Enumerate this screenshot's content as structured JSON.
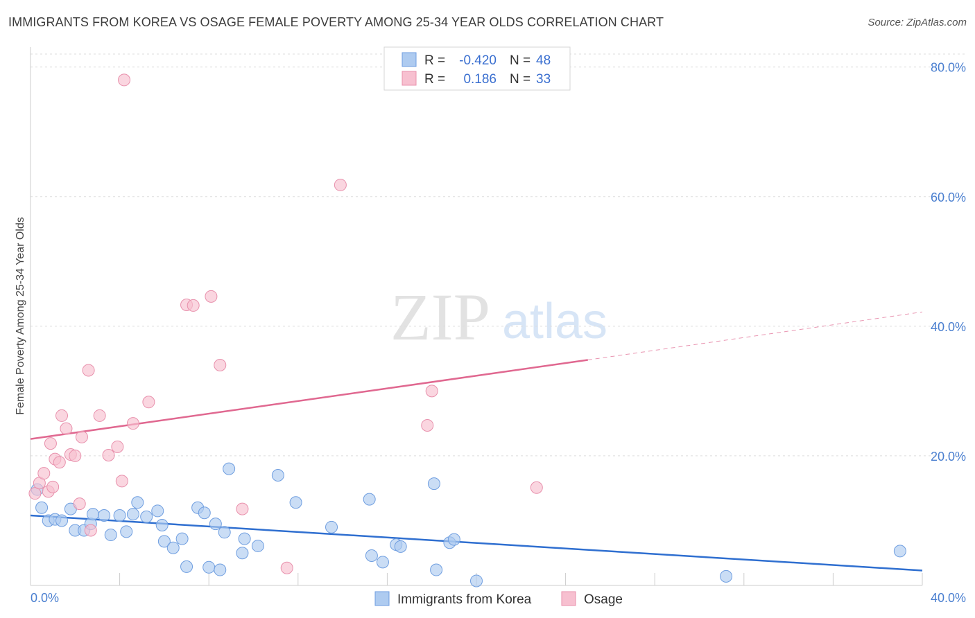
{
  "title": "IMMIGRANTS FROM KOREA VS OSAGE FEMALE POVERTY AMONG 25-34 YEAR OLDS CORRELATION CHART",
  "source": "Source: ZipAtlas.com",
  "watermark": {
    "zip": "ZIP",
    "atlas": "atlas"
  },
  "legend_top": [
    {
      "r_label": "R =",
      "r_value": "-0.420",
      "n_label": "N =",
      "n_value": "48"
    },
    {
      "r_label": "R =",
      "r_value": "0.186",
      "n_label": "N =",
      "n_value": "33"
    }
  ],
  "legend_bottom": [
    {
      "label": "Immigrants from Korea"
    },
    {
      "label": "Osage"
    }
  ],
  "colors": {
    "blue_fill": "#aecbf0",
    "blue_stroke": "#6f9ee0",
    "blue_line": "#2f6fd0",
    "pink_fill": "#f7c0d0",
    "pink_stroke": "#e890ac",
    "pink_line": "#e06890",
    "tick_color": "#4a7fd0",
    "grid": "#dddddd"
  },
  "chart_data": {
    "type": "scatter",
    "title": "IMMIGRANTS FROM KOREA VS OSAGE FEMALE POVERTY AMONG 25-34 YEAR OLDS CORRELATION CHART",
    "xlabel": "",
    "ylabel": "Female Poverty Among 25-34 Year Olds",
    "xlim": [
      0,
      40
    ],
    "ylim": [
      0,
      82
    ],
    "x_tick_labels": [
      "0.0%",
      "40.0%"
    ],
    "y_ticks": [
      20,
      40,
      60,
      80
    ],
    "y_tick_labels": [
      "20.0%",
      "40.0%",
      "60.0%",
      "80.0%"
    ],
    "grid": true,
    "legend_position": "top-center",
    "series": [
      {
        "name": "Immigrants from Korea",
        "color": "#aecbf0",
        "points": [
          [
            0.3,
            14.8
          ],
          [
            0.5,
            12.0
          ],
          [
            0.8,
            10.0
          ],
          [
            1.1,
            10.2
          ],
          [
            1.4,
            10.0
          ],
          [
            1.8,
            11.8
          ],
          [
            2.0,
            8.5
          ],
          [
            2.4,
            8.5
          ],
          [
            2.7,
            9.5
          ],
          [
            2.8,
            11.0
          ],
          [
            3.3,
            10.8
          ],
          [
            3.6,
            7.8
          ],
          [
            4.0,
            10.8
          ],
          [
            4.3,
            8.3
          ],
          [
            4.6,
            11.0
          ],
          [
            4.8,
            12.8
          ],
          [
            5.2,
            10.6
          ],
          [
            5.7,
            11.5
          ],
          [
            5.9,
            9.3
          ],
          [
            6.0,
            6.8
          ],
          [
            6.4,
            5.8
          ],
          [
            6.8,
            7.2
          ],
          [
            7.0,
            2.9
          ],
          [
            7.5,
            12.0
          ],
          [
            7.8,
            11.2
          ],
          [
            8.0,
            2.8
          ],
          [
            8.3,
            9.5
          ],
          [
            8.5,
            2.4
          ],
          [
            8.7,
            8.2
          ],
          [
            8.9,
            18.0
          ],
          [
            9.5,
            5.0
          ],
          [
            9.6,
            7.2
          ],
          [
            10.2,
            6.1
          ],
          [
            11.1,
            17.0
          ],
          [
            11.9,
            12.8
          ],
          [
            13.5,
            9.0
          ],
          [
            15.2,
            13.3
          ],
          [
            15.3,
            4.6
          ],
          [
            15.8,
            3.6
          ],
          [
            16.4,
            6.3
          ],
          [
            16.6,
            6.0
          ],
          [
            18.1,
            15.7
          ],
          [
            18.2,
            2.4
          ],
          [
            18.8,
            6.6
          ],
          [
            19.0,
            7.1
          ],
          [
            20.0,
            0.7
          ],
          [
            31.2,
            1.4
          ],
          [
            39.0,
            5.3
          ]
        ]
      },
      {
        "name": "Osage",
        "color": "#f7c0d0",
        "points": [
          [
            0.2,
            14.2
          ],
          [
            0.4,
            15.8
          ],
          [
            0.6,
            17.3
          ],
          [
            0.8,
            14.5
          ],
          [
            0.9,
            21.9
          ],
          [
            1.1,
            19.5
          ],
          [
            1.3,
            19.0
          ],
          [
            1.4,
            26.2
          ],
          [
            1.6,
            24.2
          ],
          [
            1.8,
            20.2
          ],
          [
            2.0,
            20.0
          ],
          [
            2.2,
            12.6
          ],
          [
            2.3,
            22.9
          ],
          [
            2.6,
            33.2
          ],
          [
            2.7,
            8.5
          ],
          [
            3.1,
            26.2
          ],
          [
            3.5,
            20.1
          ],
          [
            3.9,
            21.4
          ],
          [
            4.1,
            16.1
          ],
          [
            4.2,
            78.0
          ],
          [
            4.6,
            25.0
          ],
          [
            5.3,
            28.3
          ],
          [
            7.0,
            43.3
          ],
          [
            7.3,
            43.2
          ],
          [
            8.1,
            44.6
          ],
          [
            8.5,
            34.0
          ],
          [
            9.5,
            11.8
          ],
          [
            11.5,
            2.7
          ],
          [
            13.9,
            61.8
          ],
          [
            17.8,
            24.7
          ],
          [
            18.0,
            30.0
          ],
          [
            22.7,
            15.1
          ],
          [
            1.0,
            15.2
          ]
        ]
      }
    ],
    "trendlines": [
      {
        "series": "Immigrants from Korea",
        "x": [
          0,
          40
        ],
        "y": [
          10.8,
          2.3
        ],
        "style": "solid"
      },
      {
        "series": "Osage",
        "x": [
          0,
          25
        ],
        "y": [
          22.6,
          34.8
        ],
        "style": "solid"
      },
      {
        "series": "Osage",
        "x": [
          25,
          40
        ],
        "y": [
          34.8,
          42.2
        ],
        "style": "dashed"
      }
    ]
  }
}
